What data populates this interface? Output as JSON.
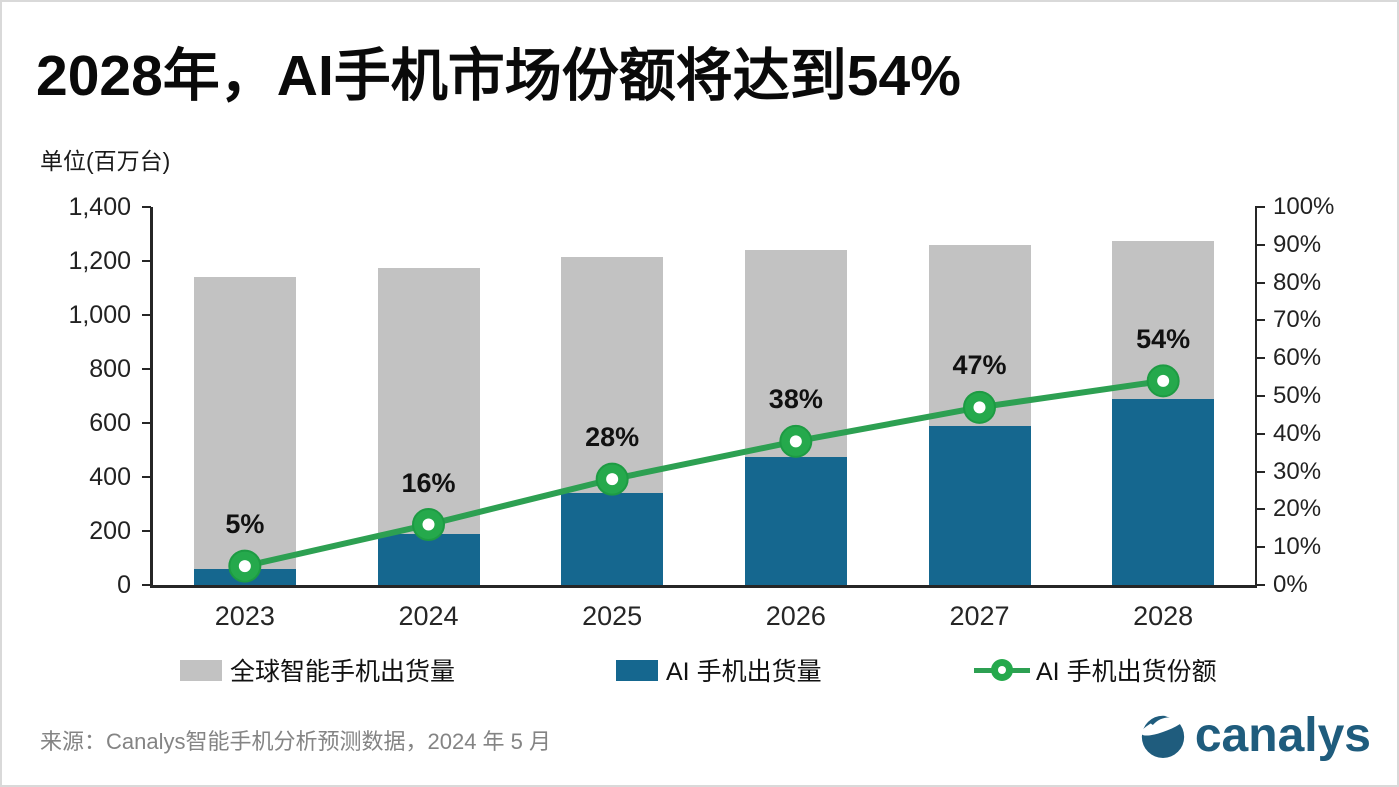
{
  "title": "2028年，AI手机市场份额将达到54%",
  "unit_label": "单位(百万台)",
  "source": "来源：Canalys智能手机分析预测数据，2024 年 5 月",
  "logo": {
    "text": "canalys",
    "color": "#1f5c7d"
  },
  "colors": {
    "axis": "#262626",
    "title_text": "#0a0a0a",
    "source_text": "#848484"
  },
  "chart_data": {
    "type": "bar",
    "subtype": "overlaid bars with line on secondary axis",
    "categories": [
      "2023",
      "2024",
      "2025",
      "2026",
      "2027",
      "2028"
    ],
    "series": [
      {
        "name": "全球智能手机出货量",
        "type": "bar",
        "color": "#c2c2c2",
        "values": [
          1140,
          1175,
          1215,
          1240,
          1260,
          1275
        ]
      },
      {
        "name": "AI 手机出货量",
        "type": "bar",
        "color": "#15678f",
        "values": [
          60,
          190,
          340,
          475,
          590,
          690
        ]
      },
      {
        "name": "AI 手机出货份额",
        "type": "line",
        "axis": "right",
        "color": "#2da052",
        "marker_color": "#25a94c",
        "marker_edge": "#1d9b43",
        "values": [
          5,
          16,
          28,
          38,
          47,
          54
        ],
        "labels": [
          "5%",
          "16%",
          "28%",
          "38%",
          "47%",
          "54%"
        ]
      }
    ],
    "left_axis": {
      "min": 0,
      "max": 1400,
      "step": 200,
      "tick_labels": [
        "0",
        "200",
        "400",
        "600",
        "800",
        "1,000",
        "1,200",
        "1,400"
      ]
    },
    "right_axis": {
      "min": 0,
      "max": 100,
      "step": 10,
      "tick_labels": [
        "0%",
        "10%",
        "20%",
        "30%",
        "40%",
        "50%",
        "60%",
        "70%",
        "80%",
        "90%",
        "100%"
      ]
    },
    "grid": false,
    "legend_position": "bottom"
  }
}
